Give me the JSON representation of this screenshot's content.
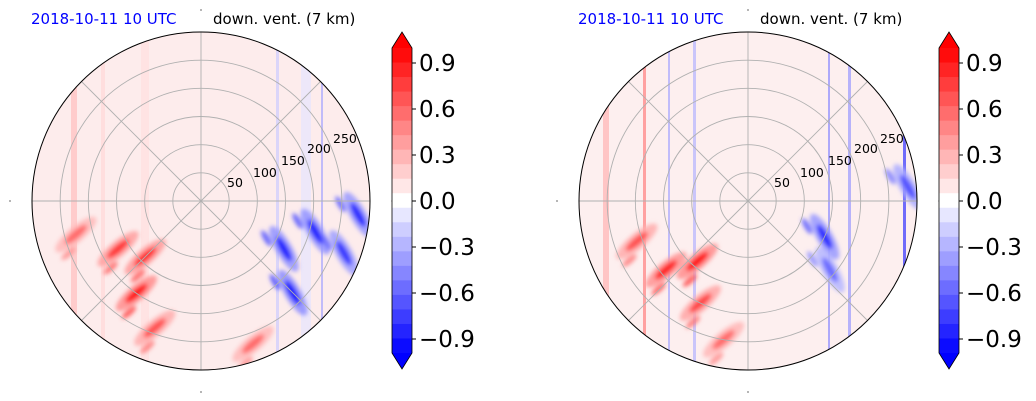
{
  "chart_data": [
    {
      "type": "heatmap",
      "projection": "polar",
      "title_left": "2018-10-11 10 UTC",
      "title_right": "down. vent. (7 km)",
      "radial_ticks": [
        "50",
        "100",
        "150",
        "200",
        "250"
      ],
      "rmax": 300,
      "grid": true,
      "colormap": "bwr",
      "colorbar": {
        "ticks": [
          "0.9",
          "0.6",
          "0.3",
          "0.0",
          "−0.3",
          "−0.6",
          "−0.9"
        ],
        "range": [
          -1.0,
          1.0
        ],
        "levels": 21,
        "extend": "both"
      },
      "features": [
        {
          "kind": "positive",
          "theta_deg": 225,
          "r": 140,
          "value": 0.85
        },
        {
          "kind": "positive",
          "theta_deg": 235,
          "r": 200,
          "value": 0.95
        },
        {
          "kind": "positive",
          "theta_deg": 210,
          "r": 170,
          "value": 0.8
        },
        {
          "kind": "positive",
          "theta_deg": 250,
          "r": 240,
          "value": 0.7
        },
        {
          "kind": "positive",
          "theta_deg": 195,
          "r": 230,
          "value": 0.6
        },
        {
          "kind": "positive",
          "theta_deg": 290,
          "r": 270,
          "value": 0.6
        },
        {
          "kind": "negative",
          "theta_deg": 330,
          "r": 170,
          "value": -0.9
        },
        {
          "kind": "negative",
          "theta_deg": 345,
          "r": 210,
          "value": -0.9
        },
        {
          "kind": "negative",
          "theta_deg": 315,
          "r": 230,
          "value": -0.95
        },
        {
          "kind": "negative",
          "theta_deg": 340,
          "r": 270,
          "value": -0.8
        },
        {
          "kind": "negative",
          "theta_deg": 355,
          "r": 280,
          "value": -0.85
        }
      ]
    },
    {
      "type": "heatmap",
      "projection": "polar",
      "title_left": "2018-10-11 10 UTC",
      "title_right": "down. vent. (7 km)",
      "radial_ticks": [
        "50",
        "100",
        "150",
        "200",
        "250"
      ],
      "rmax": 300,
      "grid": true,
      "colormap": "bwr",
      "colorbar": {
        "ticks": [
          "0.9",
          "0.6",
          "0.3",
          "0.0",
          "−0.3",
          "−0.6",
          "−0.9"
        ],
        "range": [
          -1.0,
          1.0
        ],
        "levels": 21,
        "extend": "both"
      },
      "features": [
        {
          "kind": "positive",
          "theta_deg": 230,
          "r": 140,
          "value": 0.95
        },
        {
          "kind": "positive",
          "theta_deg": 220,
          "r": 190,
          "value": 0.9
        },
        {
          "kind": "positive",
          "theta_deg": 245,
          "r": 200,
          "value": 0.75
        },
        {
          "kind": "positive",
          "theta_deg": 200,
          "r": 210,
          "value": 0.7
        },
        {
          "kind": "positive",
          "theta_deg": 260,
          "r": 250,
          "value": 0.6
        },
        {
          "kind": "negative",
          "theta_deg": 335,
          "r": 150,
          "value": -0.85
        },
        {
          "kind": "negative",
          "theta_deg": 320,
          "r": 190,
          "value": -0.6
        },
        {
          "kind": "negative",
          "theta_deg": 5,
          "r": 285,
          "value": -0.7
        }
      ]
    }
  ]
}
